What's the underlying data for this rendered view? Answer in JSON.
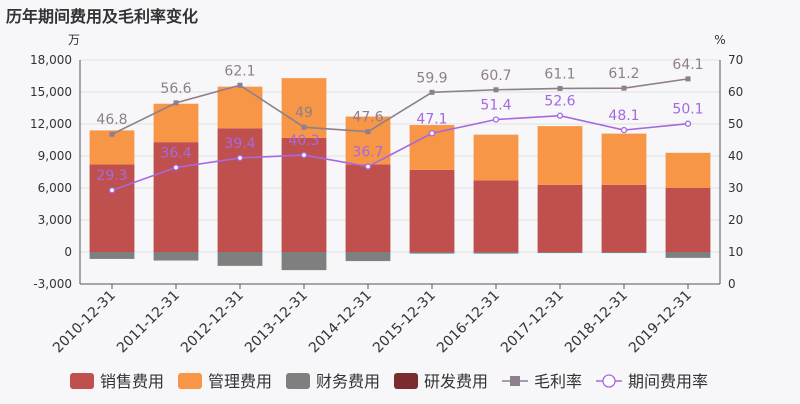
{
  "title": "历年期间费用及毛利率变化",
  "chart_data": {
    "type": "bar",
    "title": "历年期间费用及毛利率变化",
    "left_axis_unit": "万",
    "right_axis_unit": "%",
    "categories": [
      "2010-12-31",
      "2011-12-31",
      "2012-12-31",
      "2013-12-31",
      "2014-12-31",
      "2015-12-31",
      "2016-12-31",
      "2017-12-31",
      "2018-12-31",
      "2019-12-31"
    ],
    "left_axis": {
      "min": -3000,
      "max": 18000,
      "ticks": [
        -3000,
        0,
        3000,
        6000,
        9000,
        12000,
        15000,
        18000
      ],
      "tick_labels": [
        "-3,000",
        "0",
        "3,000",
        "6,000",
        "9,000",
        "12,000",
        "15,000",
        "18,000"
      ]
    },
    "right_axis": {
      "min": 0,
      "max": 70,
      "ticks": [
        0,
        10,
        20,
        30,
        40,
        50,
        60,
        70
      ],
      "tick_labels": [
        "0",
        "10",
        "20",
        "30",
        "40",
        "50",
        "60",
        "70"
      ]
    },
    "grid": true,
    "legend_position": "bottom",
    "bar_series": [
      {
        "name": "销售费用",
        "color": "#c0504d",
        "values": [
          8200,
          10300,
          11600,
          10700,
          8200,
          7700,
          6700,
          6300,
          6300,
          6000
        ]
      },
      {
        "name": "管理费用",
        "color": "#f79646",
        "values": [
          3200,
          3600,
          3900,
          5600,
          4500,
          4200,
          4300,
          5500,
          4800,
          3300
        ]
      },
      {
        "name": "财务费用",
        "color": "#7f7f7f",
        "values": [
          -650,
          -800,
          -1300,
          -1700,
          -850,
          -150,
          -150,
          -100,
          -100,
          -550
        ]
      },
      {
        "name": "研发费用",
        "color": "#7b2c2c",
        "values": [
          0,
          0,
          0,
          0,
          0,
          0,
          0,
          0,
          0,
          0
        ]
      }
    ],
    "line_series": [
      {
        "name": "毛利率",
        "color": "#8d7f8e",
        "marker": "square",
        "values": [
          46.8,
          56.6,
          62.1,
          49,
          47.6,
          59.9,
          60.7,
          61.1,
          61.2,
          64.1
        ],
        "labels": [
          "46.8",
          "56.6",
          "62.1",
          "49",
          "47.6",
          "59.9",
          "60.7",
          "61.1",
          "61.2",
          "64.1"
        ]
      },
      {
        "name": "期间费用率",
        "color": "#a569e0",
        "marker": "circle",
        "values": [
          29.3,
          36.4,
          39.4,
          40.3,
          36.7,
          47.1,
          51.4,
          52.6,
          48.1,
          50.1
        ],
        "labels": [
          "29.3",
          "36.4",
          "39.4",
          "40.3",
          "36.7",
          "47.1",
          "51.4",
          "52.6",
          "48.1",
          "50.1"
        ]
      }
    ]
  }
}
